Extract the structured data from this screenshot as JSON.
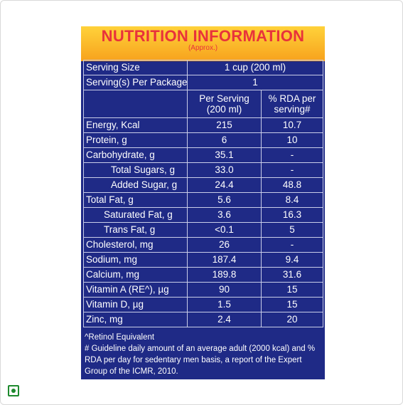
{
  "header": {
    "title": "NUTRITION INFORMATION",
    "subtitle": "(Approx.)"
  },
  "serving": {
    "size_label": "Serving Size",
    "size_value": "1 cup (200 ml)",
    "per_package_label": "Serving(s) Per Package",
    "per_package_value": "1"
  },
  "columns": {
    "per_serving": "Per Serving (200 ml)",
    "rda": "% RDA per serving#"
  },
  "rows": [
    {
      "name": "Energy, Kcal",
      "per": "215",
      "rda": "10.7"
    },
    {
      "name": "Protein, g",
      "per": "6",
      "rda": "10"
    },
    {
      "name": "Carbohydrate, g",
      "per": "35.1",
      "rda": "-"
    },
    {
      "name": "Total Sugars, g",
      "per": "33.0",
      "rda": "-"
    },
    {
      "name": "Added Sugar, g",
      "per": "24.4",
      "rda": "48.8"
    },
    {
      "name": "Total Fat, g",
      "per": "5.6",
      "rda": "8.4"
    },
    {
      "name": "Saturated Fat, g",
      "per": "3.6",
      "rda": "16.3"
    },
    {
      "name": "Trans Fat, g",
      "per": "<0.1",
      "rda": "5"
    },
    {
      "name": "Cholesterol, mg",
      "per": "26",
      "rda": "-"
    },
    {
      "name": "Sodium, mg",
      "per": "187.4",
      "rda": "9.4"
    },
    {
      "name": "Calcium, mg",
      "per": "189.8",
      "rda": "31.6"
    },
    {
      "name": "Vitamin A (RE^), µg",
      "per": "90",
      "rda": "15"
    },
    {
      "name": "Vitamin D, µg",
      "per": "1.5",
      "rda": "15"
    },
    {
      "name": "Zinc, mg",
      "per": "2.4",
      "rda": "20"
    }
  ],
  "notes": {
    "retinol": "^Retinol Equivalent",
    "guideline": "# Guideline daily amount of an average adult (2000 kcal) and % RDA per day for sedentary men basis, a report of the Expert Group of the ICMR, 2010."
  },
  "icons": {
    "veg_mark": "veg-mark-icon"
  },
  "colors": {
    "panel": "#1f2a86",
    "header_top": "#ffd23a",
    "header_bottom": "#f7a21d",
    "title": "#e8323b",
    "veg": "#1e8a2e"
  }
}
